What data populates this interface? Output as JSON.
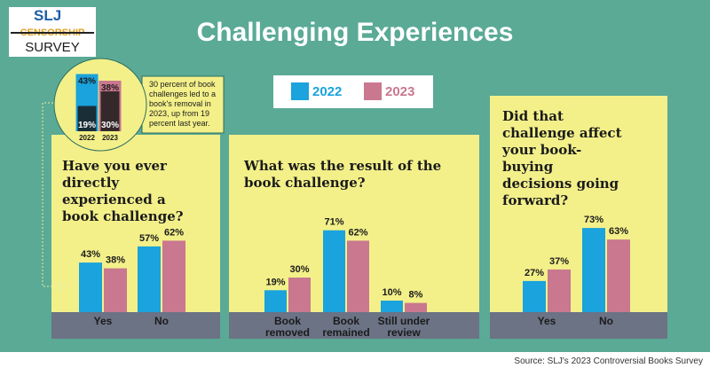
{
  "logo": {
    "brand": "SLJ",
    "strike": "CENSORSHIP",
    "word": "SURVEY"
  },
  "title": "Challenging Experiences",
  "callout_text": "30 percent of book challenges led to a book's removal in 2023, up from 19 percent last year.",
  "chart_data": [
    {
      "type": "overlay-bar",
      "categories": [
        "2022",
        "2023"
      ],
      "series": [
        {
          "colors": [
            "#1aa3dc",
            "#c9788f"
          ],
          "values": [
            43,
            38
          ],
          "value_labels": [
            "43%",
            "38%"
          ]
        },
        {
          "color": "#1a1a1a",
          "values": [
            19,
            30
          ],
          "value_labels": [
            "19%",
            "30%"
          ]
        }
      ]
    },
    {
      "type": "bar",
      "title": "Have you ever directly experienced a book challenge?",
      "categories": [
        "Yes",
        "No"
      ],
      "series": [
        {
          "name": "2022",
          "color": "#1aa3dc",
          "values": [
            43,
            57
          ],
          "value_labels": [
            "43%",
            "57%"
          ]
        },
        {
          "name": "2023",
          "color": "#c9788f",
          "values": [
            38,
            62
          ],
          "value_labels": [
            "38%",
            "62%"
          ]
        }
      ]
    },
    {
      "type": "bar",
      "title": "What was the result of the book challenge?",
      "categories": [
        "Book removed",
        "Book remained",
        "Still under review"
      ],
      "series": [
        {
          "name": "2022",
          "color": "#1aa3dc",
          "values": [
            19,
            71,
            10
          ],
          "value_labels": [
            "19%",
            "71%",
            "10%"
          ]
        },
        {
          "name": "2023",
          "color": "#c9788f",
          "values": [
            30,
            62,
            8
          ],
          "value_labels": [
            "30%",
            "62%",
            "8%"
          ]
        }
      ]
    },
    {
      "type": "bar",
      "title": "Did that challenge affect your book-buying decisions going forward?",
      "categories": [
        "Yes",
        "No"
      ],
      "series": [
        {
          "name": "2022",
          "color": "#1aa3dc",
          "values": [
            27,
            73
          ],
          "value_labels": [
            "27%",
            "73%"
          ]
        },
        {
          "name": "2023",
          "color": "#c9788f",
          "values": [
            37,
            63
          ],
          "value_labels": [
            "37%",
            "63%"
          ]
        }
      ]
    }
  ],
  "source": "Source: SLJ's 2023 Controversial Books Survey"
}
